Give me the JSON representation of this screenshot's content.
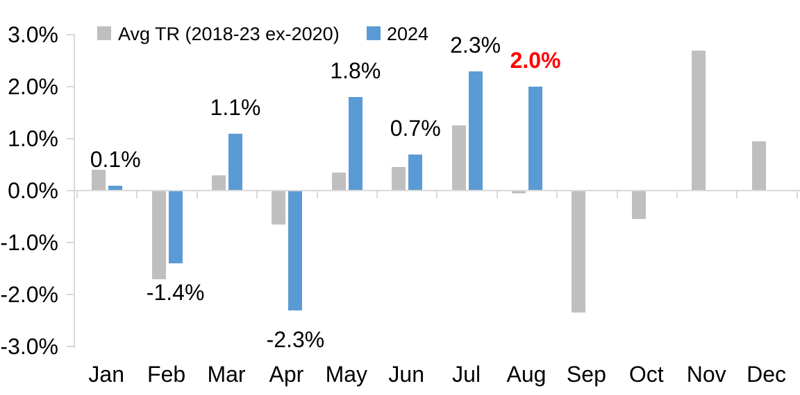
{
  "chart_data": {
    "type": "bar",
    "title": "",
    "xlabel": "",
    "ylabel": "",
    "categories": [
      "Jan",
      "Feb",
      "Mar",
      "Apr",
      "May",
      "Jun",
      "Jul",
      "Aug",
      "Sep",
      "Oct",
      "Nov",
      "Dec"
    ],
    "series": [
      {
        "name": "Avg TR (2018-23 ex-2020)",
        "color": "#BFBFBF",
        "values": [
          0.4,
          -1.7,
          0.3,
          -0.65,
          0.35,
          0.45,
          1.25,
          -0.05,
          -2.35,
          -0.55,
          2.7,
          0.95
        ]
      },
      {
        "name": "2024",
        "color": "#5B9BD5",
        "values": [
          0.1,
          -1.4,
          1.1,
          -2.3,
          1.8,
          0.7,
          2.3,
          2.0,
          null,
          null,
          null,
          null
        ]
      }
    ],
    "data_labels": [
      {
        "text": "0.1%",
        "color": "#000000",
        "bold": false
      },
      {
        "text": "-1.4%",
        "color": "#000000",
        "bold": false
      },
      {
        "text": "1.1%",
        "color": "#000000",
        "bold": false
      },
      {
        "text": "-2.3%",
        "color": "#000000",
        "bold": false
      },
      {
        "text": "1.8%",
        "color": "#000000",
        "bold": false
      },
      {
        "text": "0.7%",
        "color": "#000000",
        "bold": false
      },
      {
        "text": "2.3%",
        "color": "#000000",
        "bold": false
      },
      {
        "text": "2.0%",
        "color": "#FF0000",
        "bold": true
      }
    ],
    "y_ticks": [
      "3.0%",
      "2.0%",
      "1.0%",
      "0.0%",
      "-1.0%",
      "-2.0%",
      "-3.0%"
    ],
    "y_tick_values": [
      3,
      2,
      1,
      0,
      -1,
      -2,
      -3
    ],
    "ylim": [
      -3,
      3
    ],
    "grid": false,
    "legend_position": "top",
    "axis_color": "#D9D9D9",
    "text_color": "#000000",
    "highlight_color": "#FF0000"
  }
}
